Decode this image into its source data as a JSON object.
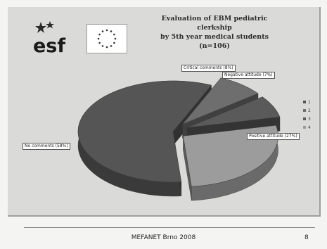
{
  "slide": {
    "title_lines": [
      "Evaluation of EBM pediatric clerkship",
      "by 5th year medical students (n=106)"
    ],
    "footer": "MEFANET Brno 2008",
    "page_number": "8",
    "logo_text": "esf"
  },
  "chart_data": {
    "type": "pie",
    "title": "Evaluation of EBM pediatric clerkship by 5th year medical students (n=106)",
    "categories": [
      "No comments",
      "Critical comments",
      "Negative attitude",
      "Positive attitude"
    ],
    "values": [
      58,
      8,
      7,
      27
    ],
    "unit": "%",
    "data_labels": [
      "No comments (58%)",
      "Critical comments (8%)",
      "Negative attitude (7%)",
      "Positive attitude (27%)"
    ],
    "legend": {
      "placement": "right",
      "entries": [
        "1",
        "2",
        "3",
        "4"
      ]
    },
    "colors": [
      "#555555",
      "#6e6e6e",
      "#5a5a5a",
      "#9c9c9c"
    ],
    "style": "3d-exploded"
  }
}
